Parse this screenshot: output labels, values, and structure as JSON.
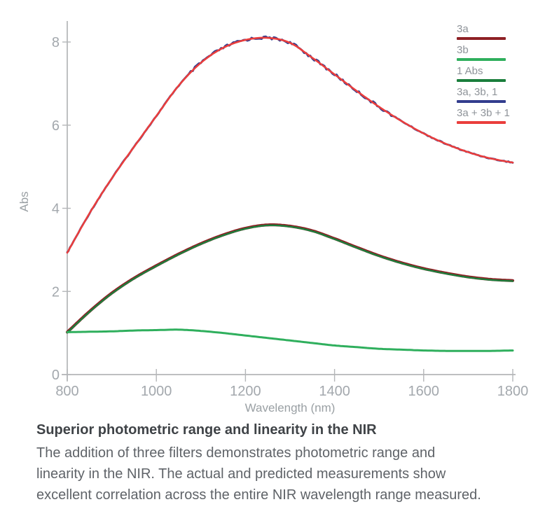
{
  "page": {
    "background": "#ffffff"
  },
  "chart_data": {
    "type": "line",
    "title": "",
    "xlabel": "Wavelength (nm)",
    "ylabel": "Abs",
    "xlim": [
      800,
      1800
    ],
    "ylim": [
      0,
      8.5
    ],
    "x_ticks": [
      800,
      1000,
      1200,
      1400,
      1600,
      1800
    ],
    "y_ticks": [
      0,
      2,
      4,
      6,
      8
    ],
    "grid": false,
    "legend_position": "top-right",
    "x": [
      800,
      850,
      900,
      950,
      1000,
      1050,
      1100,
      1150,
      1200,
      1250,
      1300,
      1350,
      1400,
      1450,
      1500,
      1550,
      1600,
      1650,
      1700,
      1750,
      1800
    ],
    "series": [
      {
        "name": "3a",
        "color": "#8e2025",
        "values": [
          1.02,
          1.52,
          1.96,
          2.32,
          2.62,
          2.9,
          3.15,
          3.36,
          3.52,
          3.6,
          3.57,
          3.46,
          3.27,
          3.06,
          2.86,
          2.69,
          2.55,
          2.44,
          2.35,
          2.29,
          2.26
        ]
      },
      {
        "name": "3b",
        "color": "#2faf5d",
        "values": [
          1.02,
          1.03,
          1.04,
          1.06,
          1.07,
          1.08,
          1.05,
          1.0,
          0.94,
          0.88,
          0.82,
          0.76,
          0.7,
          0.66,
          0.62,
          0.6,
          0.58,
          0.57,
          0.57,
          0.57,
          0.58
        ]
      },
      {
        "name": "1 Abs",
        "color": "#1b7e3c",
        "values": [
          1.02,
          1.52,
          1.96,
          2.32,
          2.62,
          2.9,
          3.15,
          3.36,
          3.52,
          3.6,
          3.57,
          3.46,
          3.27,
          3.06,
          2.86,
          2.69,
          2.55,
          2.44,
          2.35,
          2.29,
          2.26
        ]
      },
      {
        "name": "3a, 3b, 1",
        "color": "#333d8e",
        "values": [
          2.93,
          3.88,
          4.72,
          5.48,
          6.22,
          6.95,
          7.5,
          7.86,
          8.05,
          8.1,
          7.98,
          7.62,
          7.22,
          6.82,
          6.44,
          6.1,
          5.8,
          5.55,
          5.35,
          5.2,
          5.1
        ],
        "style": "noisy"
      },
      {
        "name": "3a + 3b + 1",
        "color": "#ea3e3c",
        "values": [
          2.93,
          3.88,
          4.72,
          5.48,
          6.22,
          6.95,
          7.5,
          7.86,
          8.05,
          8.1,
          7.98,
          7.62,
          7.22,
          6.82,
          6.44,
          6.1,
          5.8,
          5.55,
          5.35,
          5.2,
          5.1
        ]
      }
    ]
  },
  "caption": {
    "title": "Superior photometric range and linearity in the NIR",
    "body_lines": [
      "The addition of three filters demonstrates photometric range and",
      "linearity in the NIR. The actual and predicted measurements show",
      "excellent correlation across the entire NIR wavelength range measured."
    ]
  },
  "colors": {
    "axis": "#b4b6b8",
    "tick_label": "#a3a8ad",
    "axis_title": "#9aa0a4",
    "legend_text": "#8e9399",
    "caption_title": "#3f4347",
    "caption_body": "#5f6368"
  }
}
